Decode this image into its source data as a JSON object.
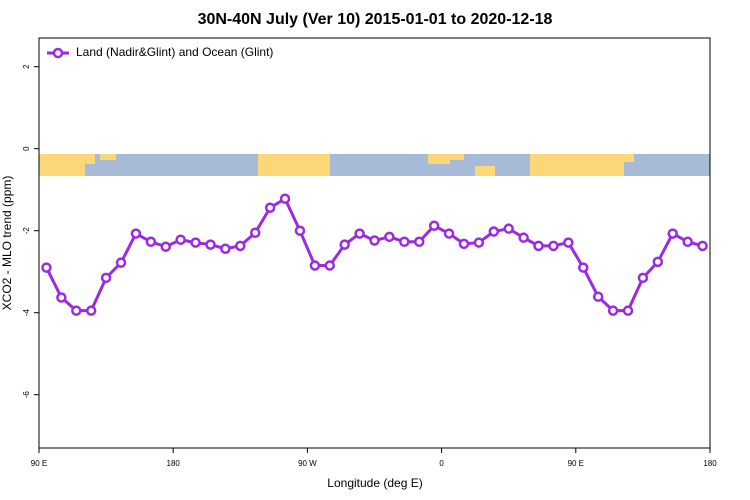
{
  "chart_data": {
    "type": "line",
    "title": "30N-40N July (Ver 10)   2015-01-01 to 2020-12-18",
    "x_label": "Longitude (deg E)",
    "y_label": "XCO2 - MLO trend (ppm)",
    "x": [
      95,
      105,
      115,
      125,
      135,
      145,
      155,
      165,
      175,
      185,
      195,
      205,
      215,
      225,
      235,
      245,
      255,
      265,
      275,
      285,
      295,
      305,
      315,
      325,
      335,
      345,
      355,
      365,
      375,
      385,
      395,
      405,
      415,
      425,
      435,
      445,
      455,
      465,
      475,
      485,
      495,
      505,
      515,
      525,
      535
    ],
    "series": [
      {
        "name": "Land (Nadir&Glint) and Ocean (Glint)",
        "color": "#9b2be0",
        "values": [
          -2.9,
          -3.63,
          -3.95,
          -3.95,
          -3.15,
          -2.78,
          -2.07,
          -2.27,
          -2.39,
          -2.22,
          -2.29,
          -2.34,
          -2.44,
          -2.37,
          -2.05,
          -1.44,
          -1.22,
          -2.0,
          -2.85,
          -2.85,
          -2.34,
          -2.07,
          -2.24,
          -2.15,
          -2.27,
          -2.27,
          -1.88,
          -2.07,
          -2.32,
          -2.29,
          -2.02,
          -1.95,
          -2.17,
          -2.37,
          -2.37,
          -2.29,
          -2.9,
          -3.61,
          -3.95,
          -3.95,
          -3.15,
          -2.76,
          -2.07,
          -2.27,
          -2.37
        ]
      }
    ],
    "xlim": [
      90,
      540
    ],
    "xticks": [
      {
        "value": 90,
        "label": "90 E"
      },
      180,
      {
        "value": 270,
        "label": "90 W"
      },
      {
        "value": 360,
        "label": "0"
      },
      {
        "value": 450,
        "label": "90 E"
      },
      {
        "value": 540,
        "label": "180"
      }
    ],
    "ylim": [
      -7.3,
      2.7
    ],
    "yticks": [
      -6,
      -4,
      -2,
      0,
      2
    ],
    "legend": "top-left"
  }
}
